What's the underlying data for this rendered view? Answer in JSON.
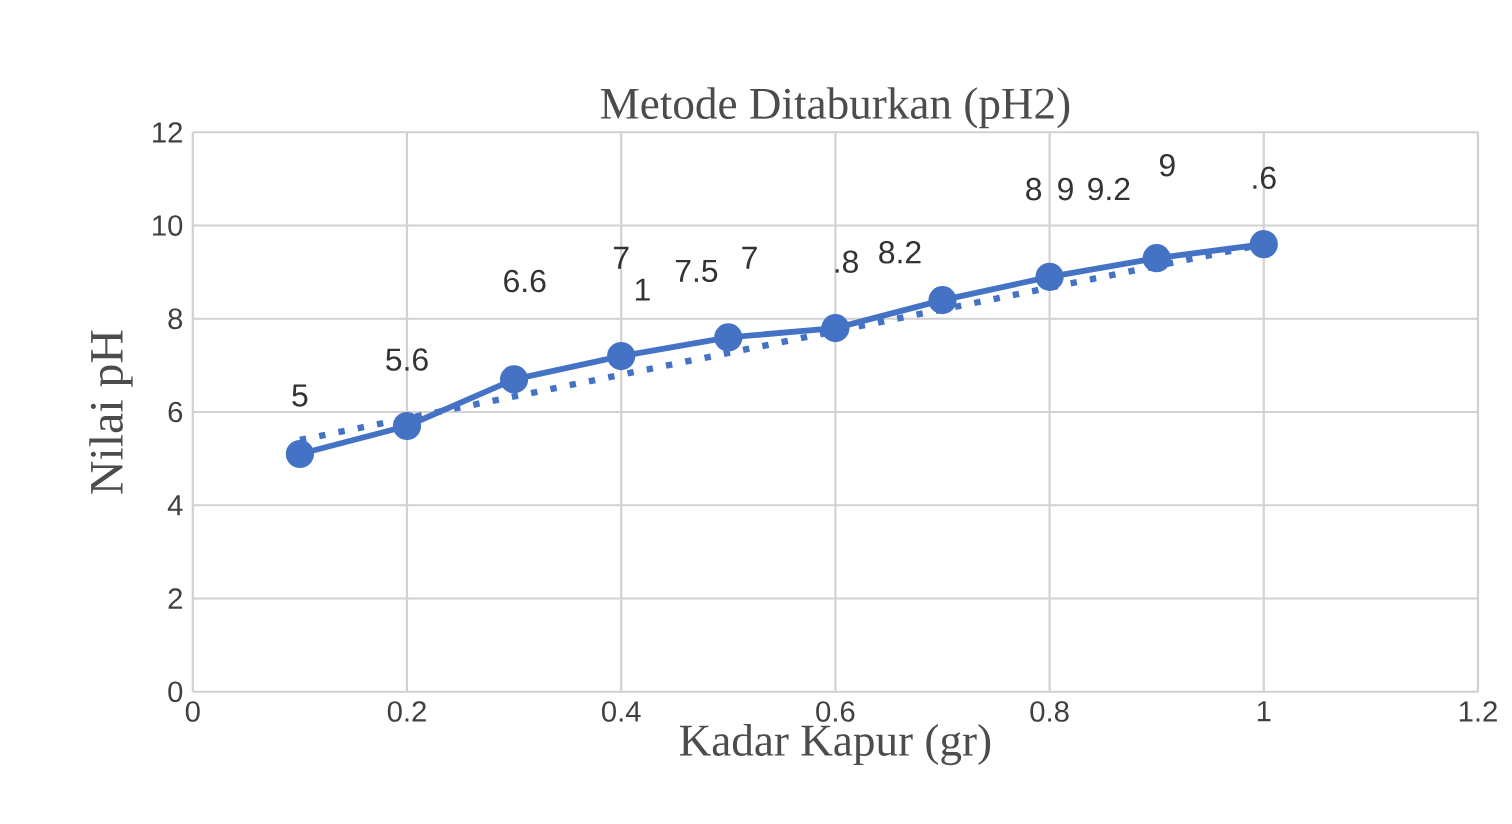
{
  "chart_data": {
    "type": "line",
    "title": "Metode Ditaburkan (pH2)",
    "xlabel": "Kadar Kapur (gr)",
    "ylabel": "Nilai pH",
    "x": [
      0.1,
      0.2,
      0.3,
      0.4,
      0.5,
      0.6,
      0.7,
      0.8,
      0.9,
      1.0
    ],
    "series": [
      {
        "color": "#4472c4",
        "marker": "circle",
        "line_style": "solid",
        "values": [
          5.1,
          5.7,
          6.7,
          7.2,
          7.6,
          7.8,
          8.4,
          8.9,
          9.3,
          9.6
        ]
      },
      {
        "color": "#4472c4",
        "marker": "none",
        "line_style": "dotted",
        "x": [
          0.1,
          1.0
        ],
        "values": [
          5.4,
          9.6
        ]
      }
    ],
    "annotations": [
      "5",
      "5.6",
      "6.6",
      "7",
      "1",
      "7.5",
      "7",
      ".8",
      "8.2",
      "8",
      "9",
      "9.2",
      "9",
      ".6"
    ],
    "xlim": [
      0,
      1.2
    ],
    "xticks": [
      0,
      0.2,
      0.4,
      0.6,
      0.8,
      1,
      1.2
    ],
    "ylim": [
      0,
      12
    ],
    "yticks": [
      0,
      2,
      4,
      6,
      8,
      10,
      12
    ],
    "grid": true
  }
}
